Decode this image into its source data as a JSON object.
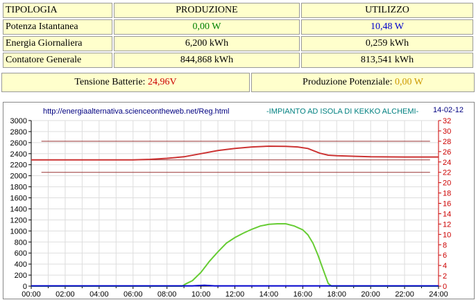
{
  "table": {
    "headers": [
      "TIPOLOGIA",
      "PRODUZIONE",
      "UTILIZZO"
    ],
    "rows": [
      {
        "label": "Potenza Istantanea",
        "prod": "0,00 W",
        "util": "10,48 W",
        "prod_color": "#008000",
        "util_color": "#0000cc"
      },
      {
        "label": "Energia Giornaliera",
        "prod": "6,200 kWh",
        "util": "0,259 kWh"
      },
      {
        "label": "Contatore Generale",
        "prod": "844,868 kWh",
        "util": "813,541 kWh"
      }
    ]
  },
  "status": {
    "battery_label": "Tensione Batterie:",
    "battery_value": "24,96V",
    "potential_label": "Produzione Potenziale:",
    "potential_value": "0,00 W"
  },
  "colors": {
    "battery": "#cc0000",
    "potential": "#cc9900",
    "panel": "#ffffcc",
    "power_line": "#66cc33",
    "voltage_line": "#cc3333",
    "use_line": "#0000cc"
  },
  "chart_header": {
    "url": "http://energiaalternativa.scienceontheweb.net/Reg.html",
    "title": "-IMPIANTO AD ISOLA DI KEKKO ALCHEMI-",
    "date": "14-02-12"
  },
  "chart_data": {
    "type": "line",
    "xlabel": "",
    "ylabel": "",
    "x_ticks": [
      "00:00",
      "02:00",
      "04:00",
      "06:00",
      "08:00",
      "10:00",
      "12:00",
      "14:00",
      "16:00",
      "18:00",
      "20:00",
      "22:00",
      "24:00"
    ],
    "y_left_ticks": [
      "0",
      "200",
      "400",
      "600",
      "800",
      "1000",
      "1200",
      "1400",
      "1600",
      "1800",
      "2000",
      "2200",
      "2400",
      "2600",
      "2800",
      "3000"
    ],
    "y_right_ticks": [
      "0",
      "2",
      "4",
      "6",
      "8",
      "10",
      "12",
      "14",
      "16",
      "18",
      "20",
      "22",
      "24",
      "26",
      "28",
      "30",
      "32"
    ],
    "ylim_left": [
      0,
      3000
    ],
    "ylim_right": [
      0,
      32
    ],
    "xlim_hours": [
      0,
      24
    ],
    "reference_lines_right": [
      22,
      24.4,
      28
    ],
    "series": [
      {
        "color": "#66cc33",
        "axis": "left",
        "points": [
          [
            0,
            0
          ],
          [
            8.9,
            0
          ],
          [
            9.1,
            40
          ],
          [
            9.5,
            100
          ],
          [
            10,
            250
          ],
          [
            10.5,
            450
          ],
          [
            11,
            620
          ],
          [
            11.5,
            780
          ],
          [
            12,
            880
          ],
          [
            12.5,
            960
          ],
          [
            13,
            1030
          ],
          [
            13.5,
            1090
          ],
          [
            14,
            1120
          ],
          [
            14.5,
            1130
          ],
          [
            15,
            1130
          ],
          [
            15.5,
            1090
          ],
          [
            16,
            1020
          ],
          [
            16.3,
            930
          ],
          [
            16.6,
            780
          ],
          [
            16.9,
            560
          ],
          [
            17.2,
            300
          ],
          [
            17.5,
            50
          ],
          [
            17.7,
            0
          ],
          [
            24,
            0
          ]
        ]
      },
      {
        "color": "#cc3333",
        "axis": "right",
        "points": [
          [
            0,
            24.4
          ],
          [
            6,
            24.4
          ],
          [
            7,
            24.5
          ],
          [
            8,
            24.7
          ],
          [
            9,
            25.0
          ],
          [
            10,
            25.6
          ],
          [
            11,
            26.2
          ],
          [
            12,
            26.6
          ],
          [
            13,
            26.9
          ],
          [
            14,
            27.05
          ],
          [
            15,
            27.0
          ],
          [
            15.7,
            26.9
          ],
          [
            16.3,
            26.6
          ],
          [
            17,
            25.7
          ],
          [
            17.5,
            25.3
          ],
          [
            18,
            25.2
          ],
          [
            20,
            25.0
          ],
          [
            22,
            24.96
          ],
          [
            24,
            24.96
          ]
        ]
      },
      {
        "color": "#0000cc",
        "axis": "left",
        "points": [
          [
            0,
            5
          ],
          [
            9.5,
            5
          ],
          [
            10.2,
            15
          ],
          [
            10.8,
            5
          ],
          [
            24,
            5
          ]
        ]
      }
    ]
  }
}
